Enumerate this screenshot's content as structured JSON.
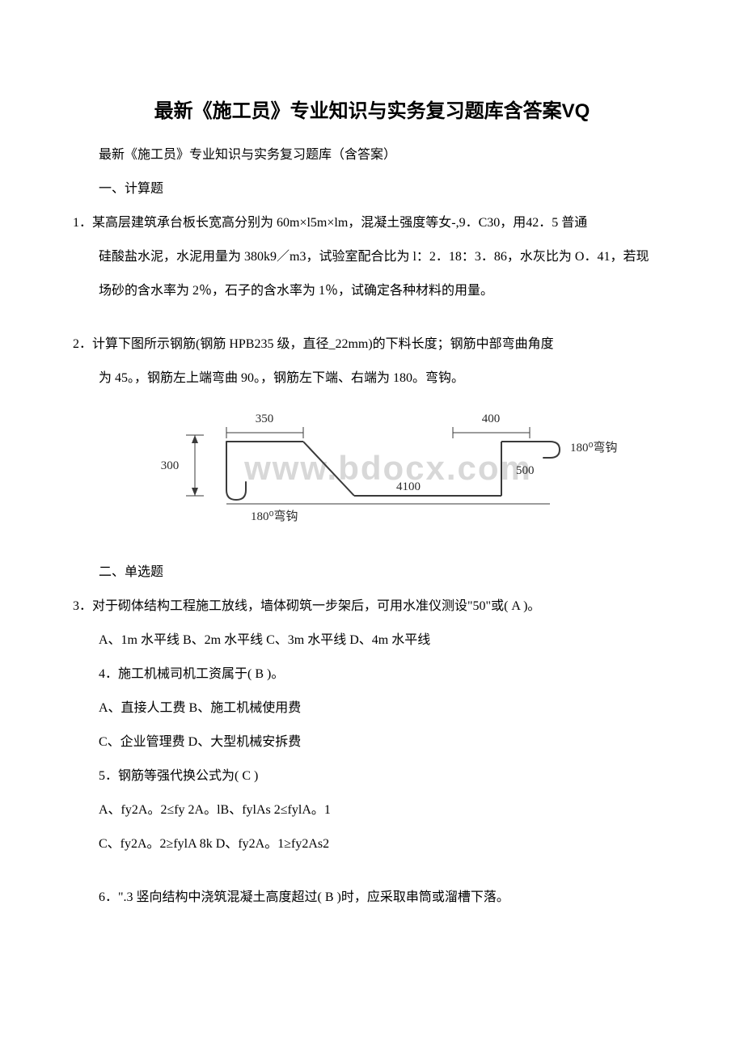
{
  "title": "最新《施工员》专业知识与实务复习题库含答案VQ",
  "p1": "最新《施工员》专业知识与实务复习题库（含答案）",
  "p2": "一、计算题",
  "p3": "1．某高层建筑承台板长宽高分别为 60m×l5m×lm，混凝土强度等女-,9．C30，用42．5 普通",
  "p4": "硅酸盐水泥，水泥用量为 380k9／m3，试验室配合比为 l：2．18：3．86，水灰比为 O．41，若现",
  "p5": "场砂的含水率为 2％，石子的含水率为 1％，试确定各种材料的用量。",
  "p6": "2．计算下图所示钢筋(钢筋 HPB235 级，直径_22mm)的下料长度；钢筋中部弯曲角度",
  "p7": "为 45。，钢筋左上端弯曲 90。，钢筋左下端、右端为 180。弯钩。",
  "p8": "二、单选题",
  "p9": "3．对于砌体结构工程施工放线，墙体砌筑一步架后，可用水准仪测设\"50\"或( A )。",
  "p10": "A、1m 水平线 B、2m 水平线 C、3m 水平线 D、4m 水平线",
  "p11": "4．施工机械司机工资属于( B )。",
  "p12": "A、直接人工费 B、施工机械使用费",
  "p13": "C、企业管理费 D、大型机械安拆费",
  "p14": "5．钢筋等强代换公式为( C )",
  "p15": "A、fy2A。2≤fy 2A。lB、fylAs 2≤fylA。1",
  "p16": "C、fy2A。2≥fylA 8k D、fy2A。1≥fy2As2",
  "p17": "6．\".3 竖向结构中浇筑混凝土高度超过( B )时，应采取串筒或溜槽下落。",
  "diagram": {
    "type": "engineering-diagram",
    "labels": {
      "left_height": "300",
      "top_left": "350",
      "top_right": "400",
      "right_height": "500",
      "bottom_span": "4100",
      "right_hook": "180⁰弯钩",
      "bottom_hook": "180⁰弯钩"
    },
    "watermark": "www.bdocx.com",
    "colors": {
      "line": "#3a3a3a",
      "watermark": "#d8d8d8",
      "text": "#2a2a2a"
    },
    "line_width": 2,
    "font_size_label": 15
  }
}
